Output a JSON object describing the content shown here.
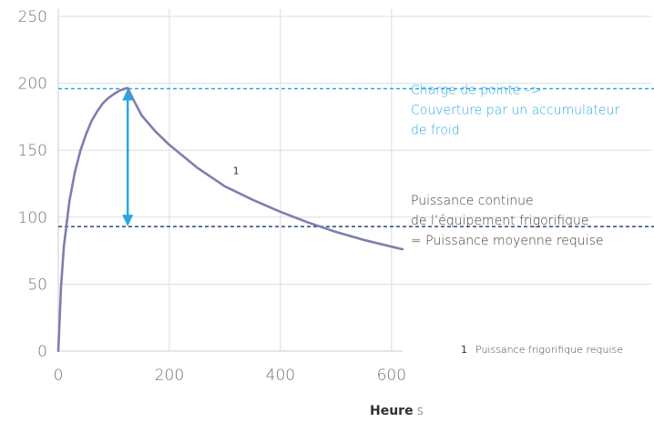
{
  "chart_data": {
    "type": "line",
    "xlim": [
      0,
      620
    ],
    "ylim": [
      0,
      250
    ],
    "x_ticks": [
      "0",
      "200",
      "400",
      "600"
    ],
    "y_ticks": [
      "0",
      "50",
      "100",
      "150",
      "200",
      "250"
    ],
    "xlabel": "Heure",
    "xlabel_unit": "s",
    "grid": true,
    "series": [
      {
        "name": "Puissance frigorifique requise",
        "marker_label": "1",
        "color": "#7e7eb0",
        "x": [
          0,
          5,
          10,
          20,
          30,
          40,
          50,
          60,
          70,
          80,
          90,
          100,
          110,
          120,
          125,
          135,
          150,
          175,
          200,
          250,
          300,
          350,
          400,
          450,
          500,
          550,
          600,
          620
        ],
        "y": [
          0,
          48,
          78,
          112,
          134,
          150,
          162,
          172,
          179,
          185,
          189,
          192,
          194.5,
          196,
          196.5,
          188,
          176,
          164,
          154,
          137,
          123,
          113,
          104,
          96,
          89,
          83,
          78,
          76
        ]
      }
    ],
    "reference_lines": [
      {
        "id": "peak",
        "y": 196,
        "color": "#29a8e0",
        "style": "dashed"
      },
      {
        "id": "continuous",
        "y": 93,
        "color": "#2c4a6b",
        "style": "dashed"
      }
    ],
    "arrow": {
      "x": 125,
      "y_from": 196,
      "y_to": 93,
      "color": "#29a8e0"
    },
    "annotations": {
      "peak": [
        "Charge de pointe –>",
        "Couverture par un accumulateur",
        "de froid"
      ],
      "continuous": [
        "Puissance continue",
        "de l’équipement frigorifique",
        "= Puissance moyenne requise"
      ],
      "curve_label": "1",
      "curve_label_xy": [
        320,
        132
      ]
    },
    "legend": {
      "number": "1",
      "text": "Puissance frigorifique requise",
      "position": "bottom-right"
    }
  }
}
